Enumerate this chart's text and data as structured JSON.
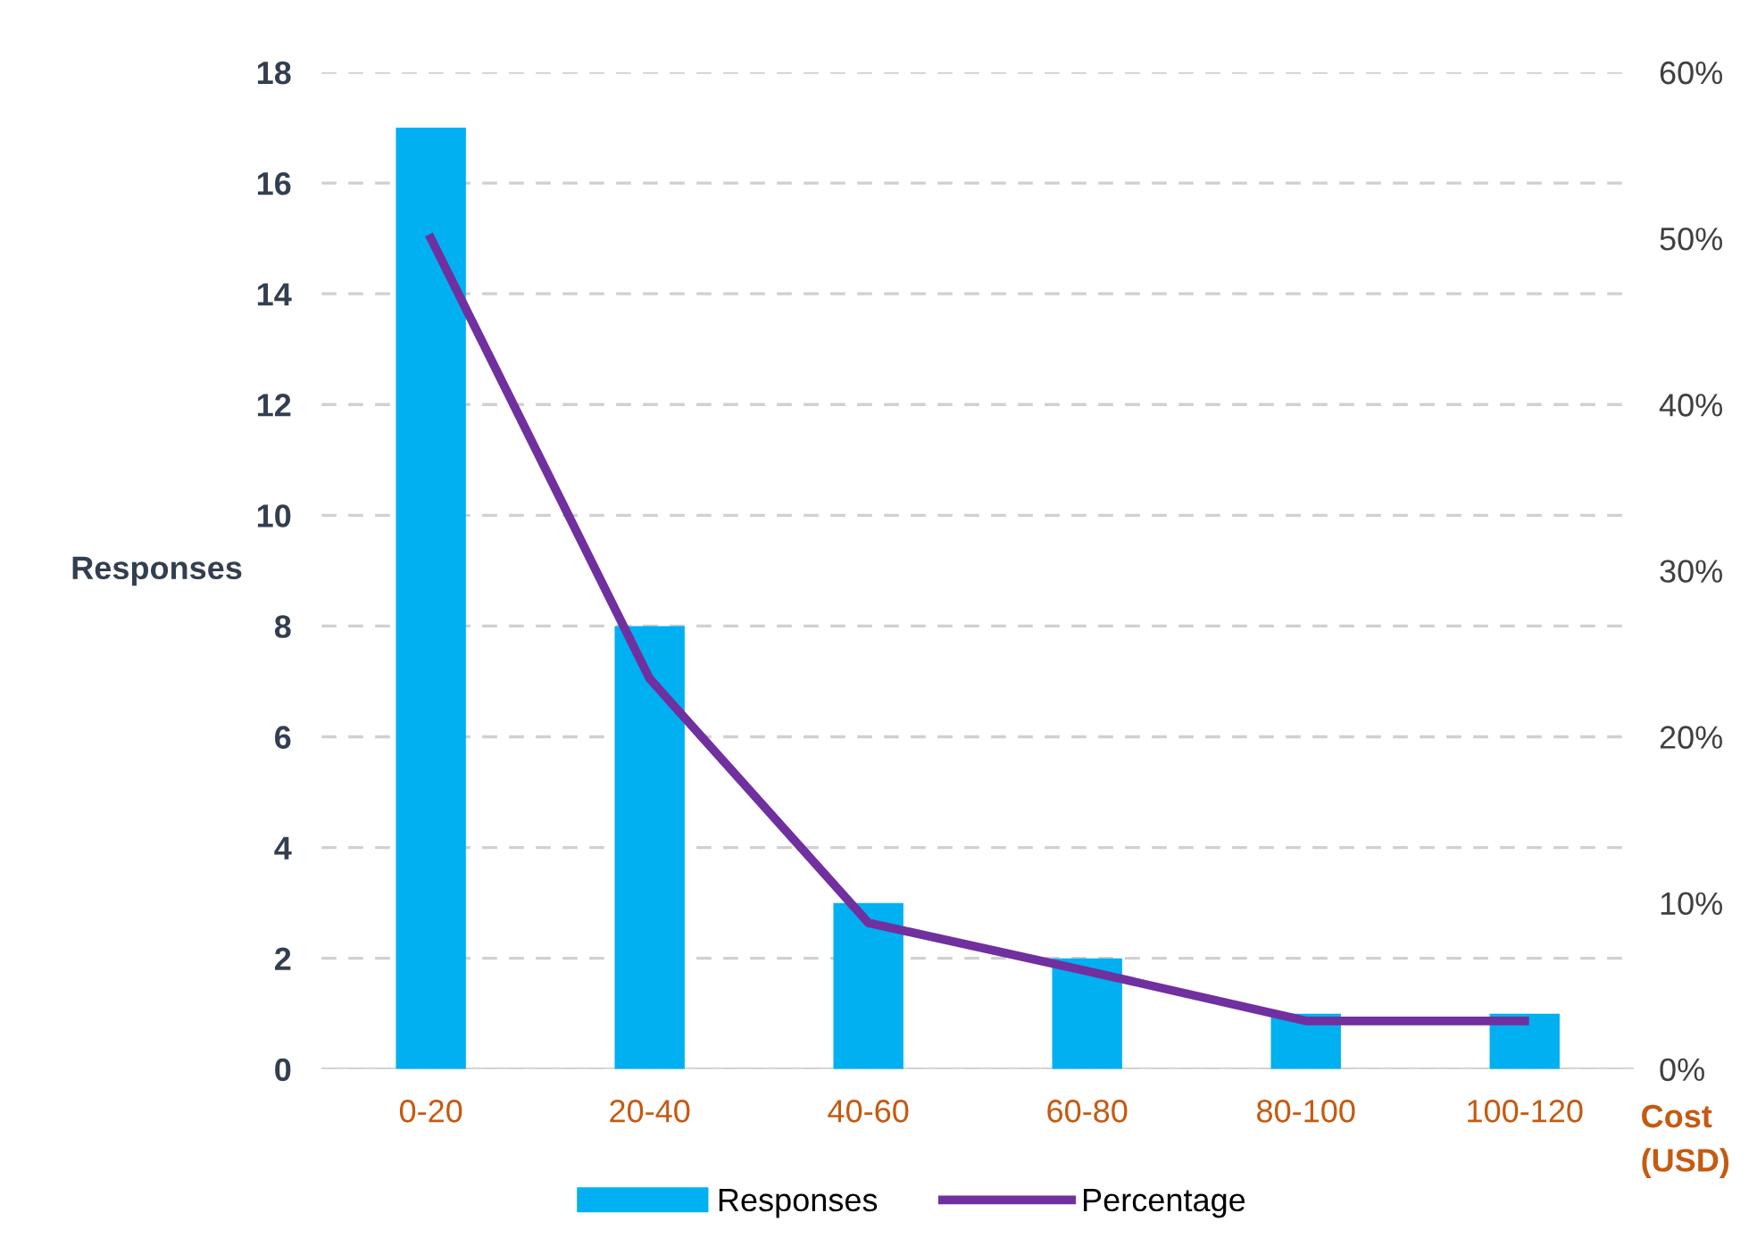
{
  "chart_data": {
    "type": "bar",
    "categories": [
      "0-20",
      "20-40",
      "40-60",
      "60-80",
      "80-100",
      "100-120"
    ],
    "series": [
      {
        "name": "Responses",
        "color": "#00b0f0",
        "values": [
          17,
          8,
          3,
          2,
          1,
          1
        ]
      },
      {
        "name": "Percentage",
        "type": "line",
        "axis": "y2",
        "color": "#7030a0",
        "values": [
          50,
          23.5,
          8.8,
          5.9,
          2.9,
          2.9
        ]
      }
    ],
    "ylabel": "Responses",
    "xlabel": "Cost (USD)",
    "ylim": [
      0,
      18
    ],
    "yticks": [
      0,
      2,
      4,
      6,
      8,
      10,
      12,
      14,
      16,
      18
    ],
    "y2lim": [
      0,
      60
    ],
    "y2ticks": [
      {
        "value": 0,
        "label": "0%"
      },
      {
        "value": 10,
        "label": "10%"
      },
      {
        "value": 20,
        "label": "20%"
      },
      {
        "value": 30,
        "label": "30%"
      },
      {
        "value": 40,
        "label": "40%"
      },
      {
        "value": 50,
        "label": "50%"
      },
      {
        "value": 60,
        "label": "60%"
      }
    ],
    "grid": "y",
    "legend": "bottom",
    "marker": "none",
    "line_style": "solid"
  }
}
